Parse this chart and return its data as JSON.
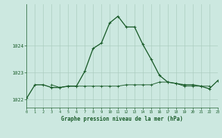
{
  "title": "Graphe pression niveau de la mer (hPa)",
  "background_color": "#cce8e0",
  "grid_color": "#aaccbe",
  "line_color": "#1a5c2a",
  "x_hours": [
    0,
    1,
    2,
    3,
    4,
    5,
    6,
    7,
    8,
    9,
    10,
    11,
    12,
    13,
    14,
    15,
    16,
    17,
    18,
    19,
    20,
    21,
    22,
    23
  ],
  "line1_y": [
    1022.05,
    1022.55,
    1022.55,
    1022.45,
    1022.45,
    1022.5,
    1022.5,
    1023.05,
    1023.9,
    1024.1,
    1024.85,
    1025.1,
    1024.7,
    1024.7,
    1024.05,
    1023.5,
    1022.9,
    1022.65,
    1022.6,
    1022.55,
    1022.55,
    1022.5,
    1022.4,
    1022.7
  ],
  "line2_y": [
    null,
    null,
    null,
    1022.55,
    1022.45,
    1022.5,
    1022.5,
    1022.5,
    1022.5,
    1022.5,
    1022.5,
    1022.5,
    1022.55,
    1022.55,
    1022.55,
    1022.55,
    1022.65,
    1022.65,
    1022.6,
    1022.5,
    1022.5,
    1022.5,
    1022.5,
    null
  ],
  "ylim": [
    1021.7,
    1025.55
  ],
  "yticks": [
    1022,
    1023,
    1024
  ],
  "xlim": [
    0,
    23
  ]
}
